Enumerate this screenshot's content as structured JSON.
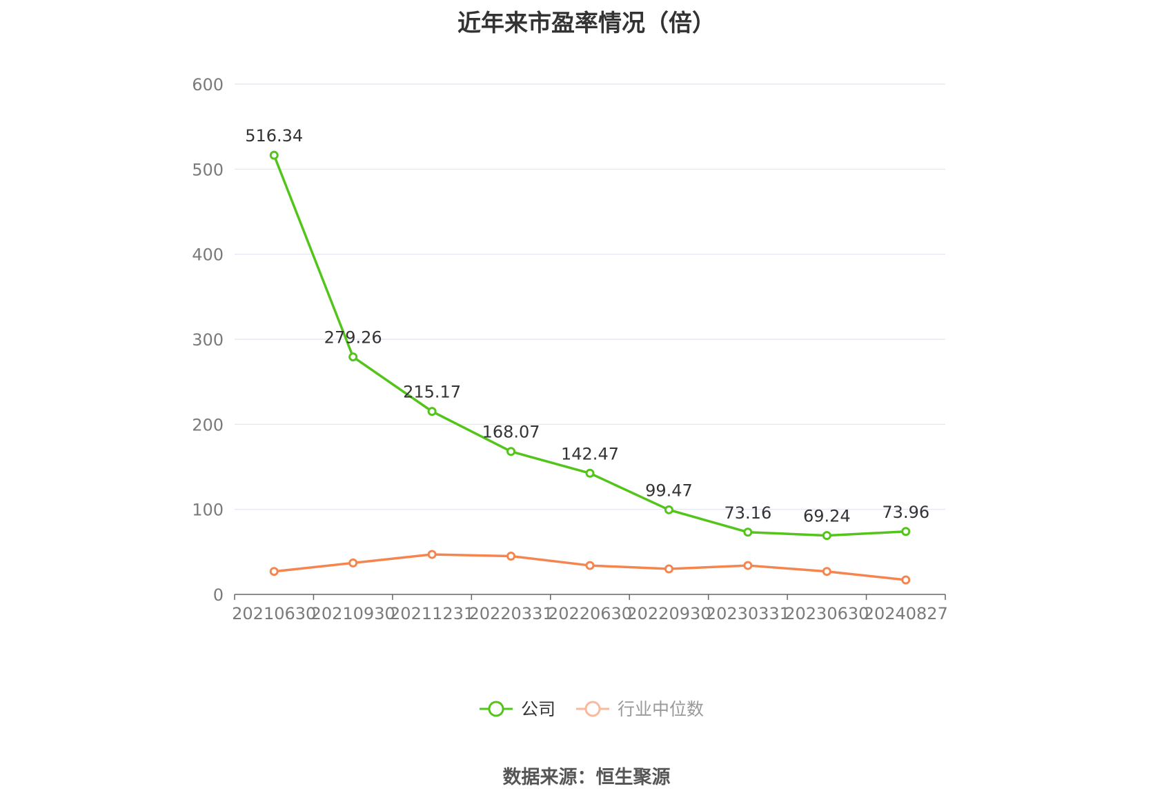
{
  "chart_data": {
    "type": "line",
    "title": "近年来市盈率情况（倍）",
    "categories": [
      "20210630",
      "20210930",
      "20211231",
      "20220331",
      "20220630",
      "20220930",
      "20230331",
      "20230630",
      "20240827"
    ],
    "series": [
      {
        "name": "公司",
        "color": "#52c41a",
        "values": [
          516.34,
          279.26,
          215.17,
          168.07,
          142.47,
          99.47,
          73.16,
          69.24,
          73.96
        ],
        "labels": [
          "516.34",
          "279.26",
          "215.17",
          "168.07",
          "142.47",
          "99.47",
          "73.16",
          "69.24",
          "73.96"
        ]
      },
      {
        "name": "行业中位数",
        "color": "#f5854f",
        "values": [
          27,
          37,
          47,
          45,
          34,
          30,
          34,
          27,
          17
        ]
      }
    ],
    "ylim": [
      0,
      600
    ],
    "yticks": [
      "0",
      "100",
      "200",
      "300",
      "400",
      "500",
      "600"
    ],
    "grid": true,
    "legend_position": "bottom-center",
    "source": "数据来源：恒生聚源"
  }
}
